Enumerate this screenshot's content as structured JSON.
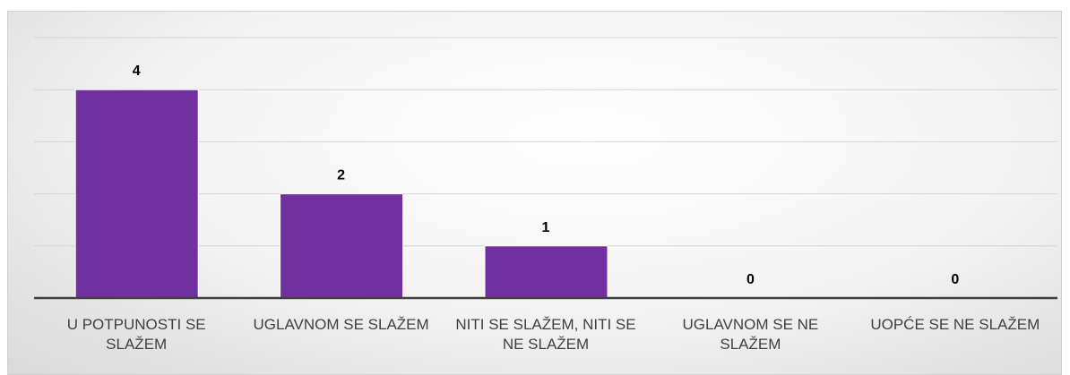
{
  "chart_data": {
    "type": "bar",
    "categories": [
      "U POTPUNOSTI SE SLAŽEM",
      "UGLAVNOM SE SLAŽEM",
      "NITI SE SLAŽEM, NITI SE NE SLAŽEM",
      "UGLAVNOM SE NE SLAŽEM",
      "UOPĆE SE NE SLAŽEM"
    ],
    "values": [
      4,
      2,
      1,
      0,
      0
    ],
    "color": "#7030a0",
    "ylim": [
      0,
      5
    ],
    "yticks": [
      0,
      1,
      2,
      3,
      4,
      5
    ],
    "grid": true
  }
}
